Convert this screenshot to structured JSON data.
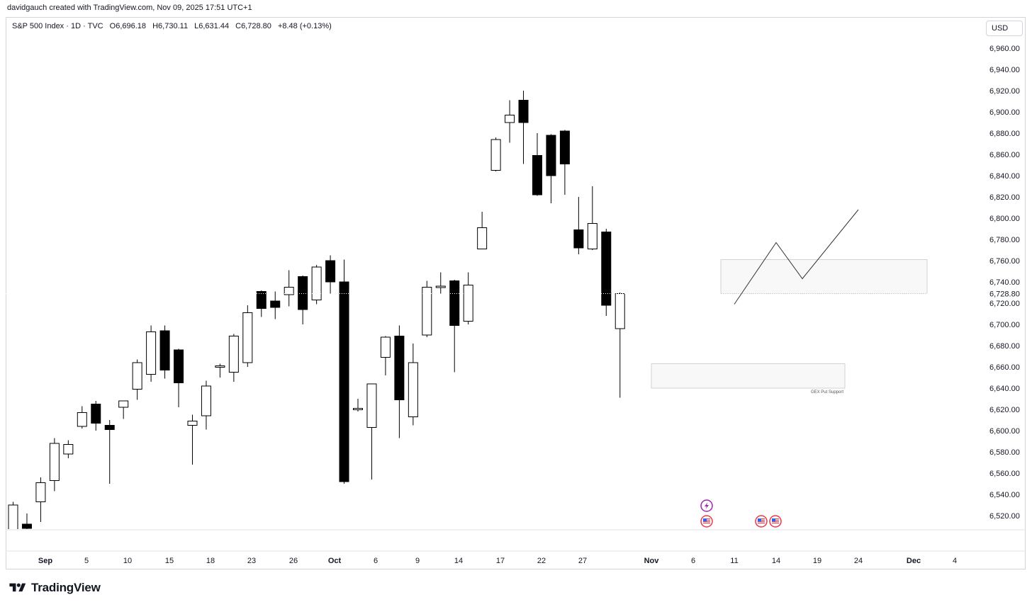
{
  "header": {
    "credit": "davidgauch created with TradingView.com, Nov 09, 2025 17:51 UTC+1"
  },
  "legend": {
    "symbol": "S&P 500 Index · 1D · TVC",
    "open": "O6,696.18",
    "high": "H6,730.11",
    "low": "L6,631.44",
    "close": "C6,728.80",
    "change": "+8.48 (+0.13%)"
  },
  "currency_button": "USD",
  "price_axis": {
    "labels": [
      "6,960.00",
      "6,940.00",
      "6,920.00",
      "6,900.00",
      "6,880.00",
      "6,860.00",
      "6,840.00",
      "6,820.00",
      "6,800.00",
      "6,780.00",
      "6,760.00",
      "6,740.00",
      "6,720.00",
      "6,700.00",
      "6,680.00",
      "6,660.00",
      "6,640.00",
      "6,620.00",
      "6,600.00",
      "6,580.00",
      "6,560.00",
      "6,540.00",
      "6,520.00"
    ],
    "current_price_label": "6,728.80"
  },
  "time_axis": {
    "labels": [
      "Sep",
      "5",
      "10",
      "15",
      "18",
      "23",
      "26",
      "Oct",
      "6",
      "9",
      "14",
      "17",
      "22",
      "27",
      "Nov",
      "6",
      "11",
      "14",
      "19",
      "24",
      "Dec",
      "4"
    ]
  },
  "annotations": {
    "gex_label": "GEX Put Support"
  },
  "event_icons": [
    "lightning-icon",
    "us-flag-icon",
    "us-flag-icon",
    "us-flag-icon"
  ],
  "colors": {
    "bull_fill": "#ffffff",
    "bear_fill": "#000000",
    "wick": "#000000",
    "zone_fill": "#f8f8f8",
    "zone_border": "#c9c9c9",
    "event_purple": "#9c27b0",
    "event_red": "#f23645"
  },
  "brand": {
    "name": "TradingView"
  },
  "chart_data": {
    "type": "candlestick",
    "symbol": "S&P 500 Index",
    "timeframe": "1D",
    "ylim": [
      6510,
      6980
    ],
    "candles": [
      {
        "o": 6502,
        "h": 6533,
        "l": 6495,
        "c": 6530
      },
      {
        "o": 6512,
        "h": 6522,
        "l": 6500,
        "c": 6508
      },
      {
        "o": 6533,
        "h": 6556,
        "l": 6514,
        "c": 6551
      },
      {
        "o": 6553,
        "h": 6593,
        "l": 6543,
        "c": 6588
      },
      {
        "o": 6578,
        "h": 6591,
        "l": 6574,
        "c": 6587
      },
      {
        "o": 6604,
        "h": 6623,
        "l": 6602,
        "c": 6617
      },
      {
        "o": 6625,
        "h": 6628,
        "l": 6600,
        "c": 6607
      },
      {
        "o": 6605,
        "h": 6610,
        "l": 6550,
        "c": 6601
      },
      {
        "o": 6622,
        "h": 6628,
        "l": 6611,
        "c": 6628
      },
      {
        "o": 6639,
        "h": 6667,
        "l": 6629,
        "c": 6664
      },
      {
        "o": 6653,
        "h": 6699,
        "l": 6646,
        "c": 6693
      },
      {
        "o": 6694,
        "h": 6699,
        "l": 6649,
        "c": 6657
      },
      {
        "o": 6676,
        "h": 6677,
        "l": 6622,
        "c": 6645
      },
      {
        "o": 6605,
        "h": 6615,
        "l": 6568,
        "c": 6609
      },
      {
        "o": 6614,
        "h": 6647,
        "l": 6601,
        "c": 6642
      },
      {
        "o": 6661,
        "h": 6663,
        "l": 6650,
        "c": 6661
      },
      {
        "o": 6655,
        "h": 6691,
        "l": 6646,
        "c": 6689
      },
      {
        "o": 6664,
        "h": 6718,
        "l": 6660,
        "c": 6711
      },
      {
        "o": 6731,
        "h": 6732,
        "l": 6707,
        "c": 6715
      },
      {
        "o": 6722,
        "h": 6731,
        "l": 6705,
        "c": 6716
      },
      {
        "o": 6728,
        "h": 6751,
        "l": 6717,
        "c": 6735
      },
      {
        "o": 6745,
        "h": 6746,
        "l": 6700,
        "c": 6714
      },
      {
        "o": 6723,
        "h": 6756,
        "l": 6719,
        "c": 6754
      },
      {
        "o": 6760,
        "h": 6765,
        "l": 6729,
        "c": 6740
      },
      {
        "o": 6740,
        "h": 6761,
        "l": 6550,
        "c": 6552
      },
      {
        "o": 6620,
        "h": 6630,
        "l": 6618,
        "c": 6621
      },
      {
        "o": 6603,
        "h": 6644,
        "l": 6554,
        "c": 6644
      },
      {
        "o": 6669,
        "h": 6689,
        "l": 6652,
        "c": 6688
      },
      {
        "o": 6689,
        "h": 6699,
        "l": 6593,
        "c": 6629
      },
      {
        "o": 6613,
        "h": 6682,
        "l": 6605,
        "c": 6664
      },
      {
        "o": 6690,
        "h": 6741,
        "l": 6688,
        "c": 6735
      },
      {
        "o": 6736,
        "h": 6749,
        "l": 6729,
        "c": 6736
      },
      {
        "o": 6741,
        "h": 6742,
        "l": 6655,
        "c": 6699
      },
      {
        "o": 6703,
        "h": 6749,
        "l": 6700,
        "c": 6737
      },
      {
        "o": 6771,
        "h": 6806,
        "l": 6771,
        "c": 6791
      },
      {
        "o": 6845,
        "h": 6876,
        "l": 6844,
        "c": 6874
      },
      {
        "o": 6890,
        "h": 6911,
        "l": 6871,
        "c": 6897
      },
      {
        "o": 6911,
        "h": 6920,
        "l": 6851,
        "c": 6890
      },
      {
        "o": 6859,
        "h": 6880,
        "l": 6821,
        "c": 6822
      },
      {
        "o": 6878,
        "h": 6879,
        "l": 6814,
        "c": 6840
      },
      {
        "o": 6882,
        "h": 6883,
        "l": 6822,
        "c": 6851
      },
      {
        "o": 6789,
        "h": 6820,
        "l": 6766,
        "c": 6772
      },
      {
        "o": 6771,
        "h": 6830,
        "l": 6770,
        "c": 6795
      },
      {
        "o": 6787,
        "h": 6790,
        "l": 6708,
        "c": 6718
      },
      {
        "o": 6696,
        "h": 6730,
        "l": 6631,
        "c": 6729
      }
    ],
    "zones": [
      {
        "label": "",
        "from": 6729,
        "to": 6761
      },
      {
        "label": "GEX Put Support",
        "from": 6640,
        "to": 6663
      }
    ],
    "projection_path": [
      6719,
      6777,
      6743,
      6808
    ]
  }
}
